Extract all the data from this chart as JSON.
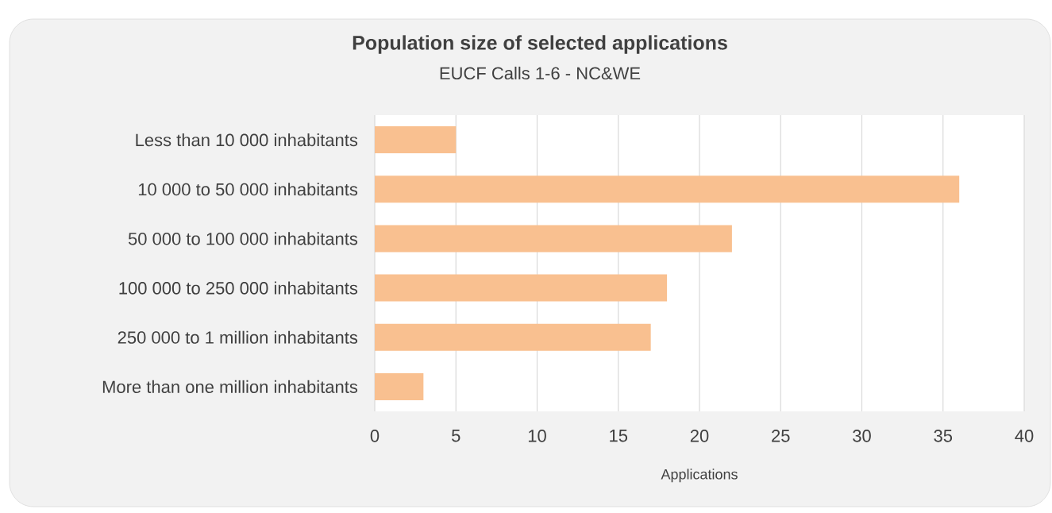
{
  "chart_data": {
    "type": "bar",
    "orientation": "horizontal",
    "title": "Population size of selected applications",
    "subtitle": "EUCF Calls 1-6 - NC&WE",
    "xlabel": "Applications",
    "categories": [
      "Less than 10 000 inhabitants",
      "10 000 to 50 000 inhabitants",
      "50 000 to 100 000 inhabitants",
      "100 000 to 250 000 inhabitants",
      "250 000 to 1 million inhabitants",
      "More than one million inhabitants"
    ],
    "values": [
      5,
      36,
      22,
      18,
      17,
      3
    ],
    "color": "#f9c090",
    "xlim": [
      0,
      40
    ],
    "xticks": [
      0,
      5,
      10,
      15,
      20,
      25,
      30,
      35,
      40
    ],
    "grid": "x"
  }
}
